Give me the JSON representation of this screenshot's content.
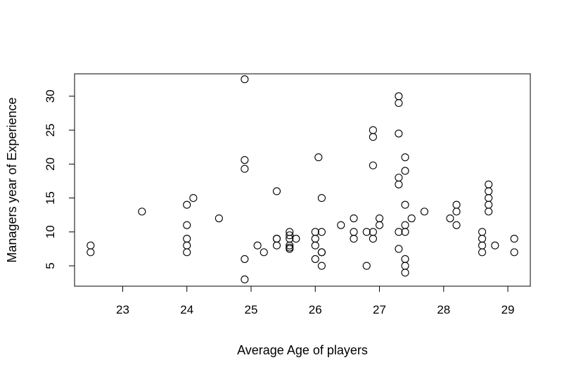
{
  "chart_data": {
    "type": "scatter",
    "title": "",
    "xlabel": "Average Age of players",
    "ylabel": "Managers year of Experience",
    "xlim": [
      22.25,
      29.35
    ],
    "ylim": [
      2,
      33.3
    ],
    "x_ticks": [
      23,
      24,
      25,
      26,
      27,
      28,
      29
    ],
    "y_ticks": [
      5,
      10,
      15,
      20,
      25,
      30
    ],
    "grid": false,
    "point_color": "#000000",
    "points": [
      {
        "x": 22.5,
        "y": 8
      },
      {
        "x": 22.5,
        "y": 7
      },
      {
        "x": 23.3,
        "y": 13
      },
      {
        "x": 24.0,
        "y": 14
      },
      {
        "x": 24.0,
        "y": 11
      },
      {
        "x": 24.0,
        "y": 9
      },
      {
        "x": 24.0,
        "y": 8
      },
      {
        "x": 24.0,
        "y": 7
      },
      {
        "x": 24.1,
        "y": 15
      },
      {
        "x": 24.5,
        "y": 12
      },
      {
        "x": 24.9,
        "y": 32.5
      },
      {
        "x": 24.9,
        "y": 20.6
      },
      {
        "x": 24.9,
        "y": 19.3
      },
      {
        "x": 24.9,
        "y": 6
      },
      {
        "x": 24.9,
        "y": 3
      },
      {
        "x": 25.1,
        "y": 8
      },
      {
        "x": 25.2,
        "y": 7
      },
      {
        "x": 25.4,
        "y": 16
      },
      {
        "x": 25.4,
        "y": 9
      },
      {
        "x": 25.4,
        "y": 8
      },
      {
        "x": 25.4,
        "y": 9
      },
      {
        "x": 25.6,
        "y": 10
      },
      {
        "x": 25.6,
        "y": 9.5
      },
      {
        "x": 25.6,
        "y": 9
      },
      {
        "x": 25.6,
        "y": 8
      },
      {
        "x": 25.6,
        "y": 7.7
      },
      {
        "x": 25.6,
        "y": 7.5
      },
      {
        "x": 25.7,
        "y": 9
      },
      {
        "x": 26.0,
        "y": 10
      },
      {
        "x": 26.0,
        "y": 9
      },
      {
        "x": 26.0,
        "y": 8
      },
      {
        "x": 26.0,
        "y": 6
      },
      {
        "x": 26.05,
        "y": 21
      },
      {
        "x": 26.1,
        "y": 15
      },
      {
        "x": 26.1,
        "y": 10
      },
      {
        "x": 26.1,
        "y": 7
      },
      {
        "x": 26.1,
        "y": 7
      },
      {
        "x": 26.1,
        "y": 5
      },
      {
        "x": 26.4,
        "y": 11
      },
      {
        "x": 26.6,
        "y": 12
      },
      {
        "x": 26.6,
        "y": 10
      },
      {
        "x": 26.6,
        "y": 9
      },
      {
        "x": 26.8,
        "y": 10
      },
      {
        "x": 26.8,
        "y": 5
      },
      {
        "x": 26.9,
        "y": 25
      },
      {
        "x": 26.9,
        "y": 24
      },
      {
        "x": 26.9,
        "y": 19.8
      },
      {
        "x": 26.9,
        "y": 10
      },
      {
        "x": 26.9,
        "y": 9
      },
      {
        "x": 27.0,
        "y": 12
      },
      {
        "x": 27.0,
        "y": 11
      },
      {
        "x": 27.3,
        "y": 30
      },
      {
        "x": 27.3,
        "y": 29
      },
      {
        "x": 27.3,
        "y": 24.5
      },
      {
        "x": 27.3,
        "y": 18
      },
      {
        "x": 27.3,
        "y": 17
      },
      {
        "x": 27.3,
        "y": 10
      },
      {
        "x": 27.3,
        "y": 7.5
      },
      {
        "x": 27.4,
        "y": 21
      },
      {
        "x": 27.4,
        "y": 19
      },
      {
        "x": 27.4,
        "y": 14
      },
      {
        "x": 27.4,
        "y": 11
      },
      {
        "x": 27.4,
        "y": 10
      },
      {
        "x": 27.4,
        "y": 6
      },
      {
        "x": 27.4,
        "y": 5
      },
      {
        "x": 27.4,
        "y": 4
      },
      {
        "x": 27.5,
        "y": 12
      },
      {
        "x": 27.7,
        "y": 13
      },
      {
        "x": 28.1,
        "y": 12
      },
      {
        "x": 28.2,
        "y": 14
      },
      {
        "x": 28.2,
        "y": 13
      },
      {
        "x": 28.2,
        "y": 11
      },
      {
        "x": 28.6,
        "y": 10
      },
      {
        "x": 28.6,
        "y": 9
      },
      {
        "x": 28.6,
        "y": 8
      },
      {
        "x": 28.6,
        "y": 7
      },
      {
        "x": 28.7,
        "y": 17
      },
      {
        "x": 28.7,
        "y": 16
      },
      {
        "x": 28.7,
        "y": 15
      },
      {
        "x": 28.7,
        "y": 14
      },
      {
        "x": 28.7,
        "y": 13
      },
      {
        "x": 28.8,
        "y": 8
      },
      {
        "x": 29.1,
        "y": 9
      },
      {
        "x": 29.1,
        "y": 7
      }
    ]
  }
}
